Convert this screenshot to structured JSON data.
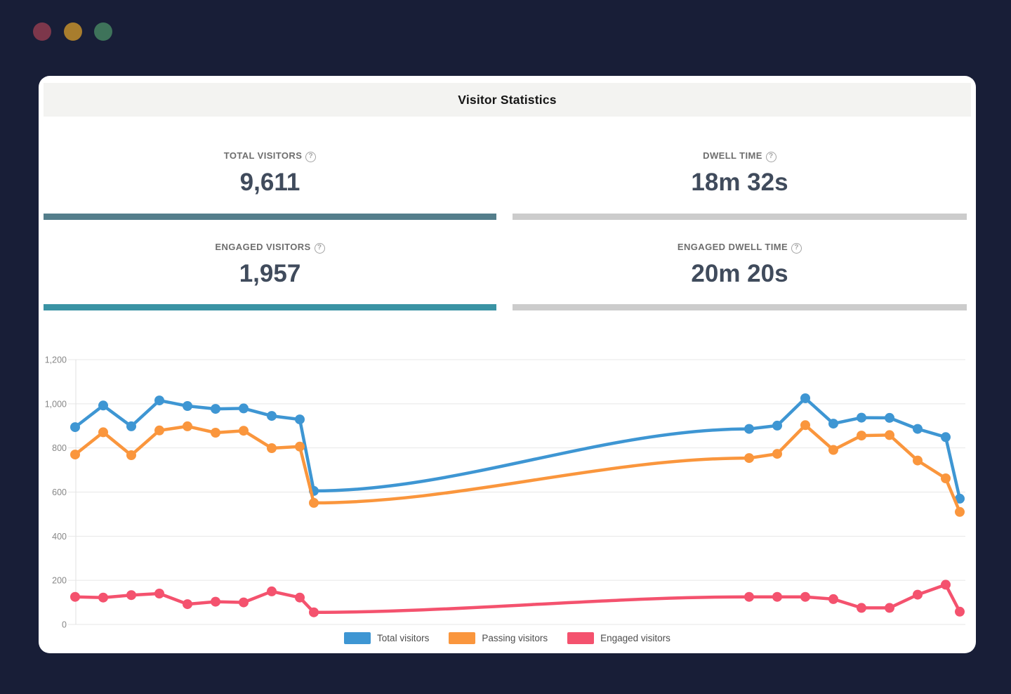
{
  "window": {
    "background": "#181e37",
    "dots": [
      {
        "name": "red-dot",
        "color": "#7d374b"
      },
      {
        "name": "yellow-dot",
        "color": "#a87d2d"
      },
      {
        "name": "green-dot",
        "color": "#3e735a"
      }
    ]
  },
  "card": {
    "title": "Visitor Statistics",
    "header_bg": "#f3f3f1"
  },
  "stats": [
    {
      "id": "total-visitors",
      "label": "TOTAL VISITORS",
      "help_icon": "?",
      "value": "9,611",
      "bar_color": "#547e8b"
    },
    {
      "id": "dwell-time",
      "label": "DWELL TIME",
      "help_icon": "?",
      "value": "18m 32s",
      "bar_color": "#cccccc"
    },
    {
      "id": "engaged-visitors",
      "label": "ENGAGED VISITORS",
      "help_icon": "?",
      "value": "1,957",
      "bar_color": "#3a93a4"
    },
    {
      "id": "engaged-dwell-time",
      "label": "ENGAGED DWELL TIME",
      "help_icon": "?",
      "value": "20m 20s",
      "bar_color": "#cccccc"
    }
  ],
  "chart_data": {
    "type": "line",
    "x": [
      0,
      1,
      2,
      3,
      4,
      5,
      6,
      7,
      8,
      8.5,
      24,
      25,
      26,
      27,
      28,
      29,
      30,
      31,
      31.5
    ],
    "ylim": [
      0,
      1200
    ],
    "yticks": [
      {
        "value": 0,
        "label": "0"
      },
      {
        "value": 200,
        "label": "200"
      },
      {
        "value": 400,
        "label": "400"
      },
      {
        "value": 600,
        "label": "600"
      },
      {
        "value": 800,
        "label": "800"
      },
      {
        "value": 1000,
        "label": "1,000"
      },
      {
        "value": 1200,
        "label": "1,200"
      }
    ],
    "grid": true,
    "legend_position": "bottom",
    "series": [
      {
        "name": "Total visitors",
        "color": "#3e96d3",
        "values": [
          894,
          992,
          898,
          1015,
          990,
          977,
          979,
          945,
          929,
          605,
          886,
          901,
          1025,
          910,
          937,
          936,
          886,
          849,
          570
        ]
      },
      {
        "name": "Passing visitors",
        "color": "#fa963d",
        "values": [
          770,
          871,
          767,
          879,
          898,
          869,
          878,
          799,
          806,
          551,
          754,
          773,
          903,
          791,
          856,
          858,
          743,
          662,
          510
        ]
      },
      {
        "name": "Engaged visitors",
        "color": "#f4526e",
        "values": [
          125,
          122,
          133,
          140,
          92,
          103,
          100,
          150,
          122,
          55,
          125,
          125,
          125,
          115,
          75,
          75,
          135,
          180,
          58
        ]
      }
    ]
  }
}
